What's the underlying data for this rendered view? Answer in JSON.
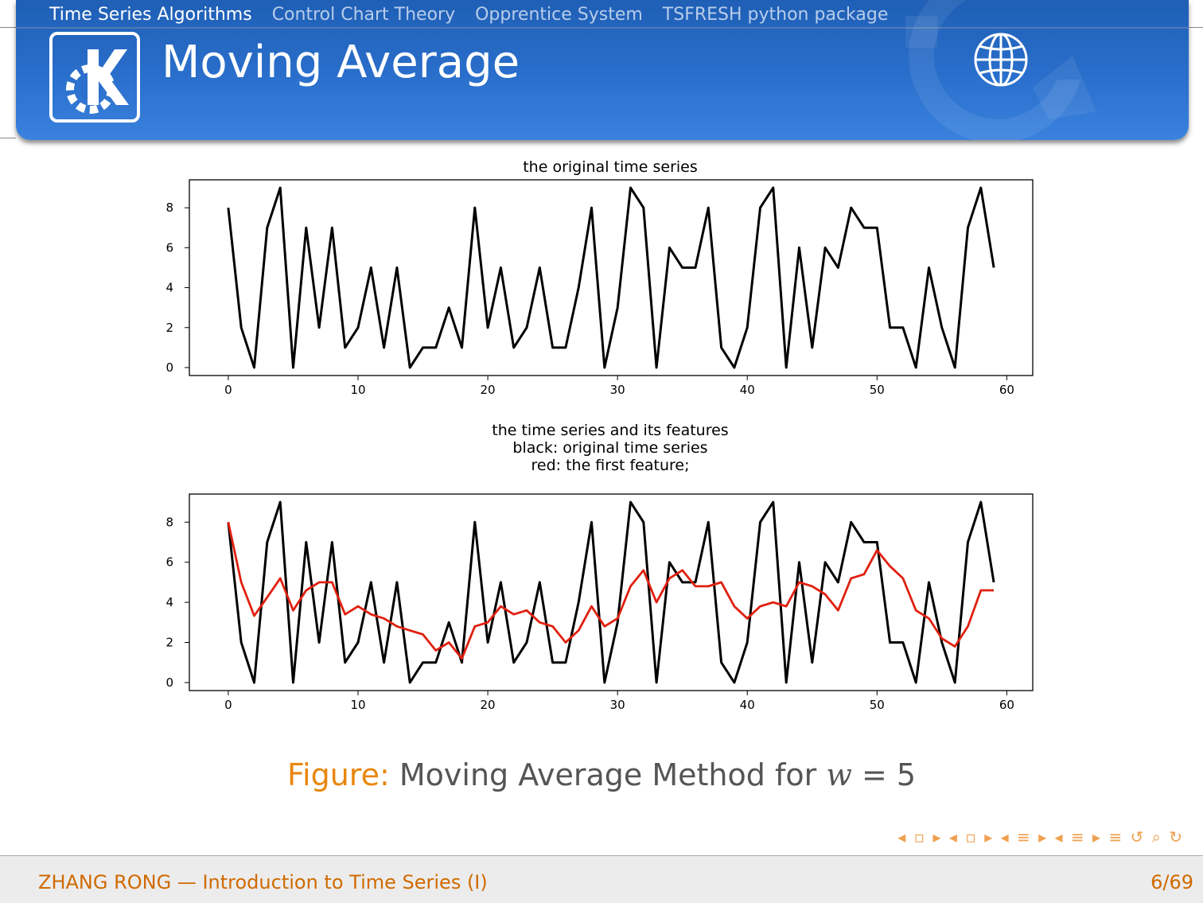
{
  "header": {
    "nav": [
      "Time Series Algorithms",
      "Control Chart Theory",
      "Opprentice System",
      "TSFRESH python package"
    ],
    "title": "Moving Average",
    "logo_icon": "kde-logo-icon",
    "globe_icon": "globe-icon"
  },
  "chart_data": [
    {
      "type": "line",
      "title": "the original time series",
      "xlim": [
        -3,
        62
      ],
      "ylim": [
        -0.4,
        9.4
      ],
      "xticks": [
        0,
        10,
        20,
        30,
        40,
        50,
        60
      ],
      "yticks": [
        0,
        2,
        4,
        6,
        8
      ],
      "series": [
        {
          "color": "#000000",
          "values": [
            8,
            2,
            0,
            7,
            9,
            0,
            7,
            2,
            7,
            1,
            2,
            5,
            1,
            5,
            0,
            1,
            1,
            3,
            1,
            8,
            2,
            5,
            1,
            2,
            5,
            1,
            1,
            4,
            8,
            0,
            3,
            9,
            8,
            0,
            6,
            5,
            5,
            8,
            1,
            0,
            2,
            8,
            9,
            0,
            6,
            1,
            6,
            5,
            8,
            7,
            7,
            2,
            2,
            0,
            5,
            2,
            0,
            7,
            9,
            5
          ]
        }
      ]
    },
    {
      "type": "line",
      "title": "the time series and its features\nblack: original time series\nred: the first feature;",
      "title_lines": [
        "the time series and its features",
        "black: original time series",
        "red: the first feature;"
      ],
      "xlim": [
        -3,
        62
      ],
      "ylim": [
        -0.4,
        9.4
      ],
      "xticks": [
        0,
        10,
        20,
        30,
        40,
        50,
        60
      ],
      "yticks": [
        0,
        2,
        4,
        6,
        8
      ],
      "series": [
        {
          "color": "#000000",
          "values": [
            8,
            2,
            0,
            7,
            9,
            0,
            7,
            2,
            7,
            1,
            2,
            5,
            1,
            5,
            0,
            1,
            1,
            3,
            1,
            8,
            2,
            5,
            1,
            2,
            5,
            1,
            1,
            4,
            8,
            0,
            3,
            9,
            8,
            0,
            6,
            5,
            5,
            8,
            1,
            0,
            2,
            8,
            9,
            0,
            6,
            1,
            6,
            5,
            8,
            7,
            7,
            2,
            2,
            0,
            5,
            2,
            0,
            7,
            9,
            5
          ]
        },
        {
          "color": "#e02010",
          "values": [
            8,
            5,
            3.33,
            4.25,
            5.2,
            3.6,
            4.6,
            5,
            5,
            3.4,
            3.8,
            3.4,
            3.2,
            2.8,
            2.6,
            2.4,
            1.6,
            2,
            1.2,
            2.8,
            3,
            3.8,
            3.4,
            3.6,
            3,
            2.8,
            2,
            2.6,
            3.8,
            2.8,
            3.2,
            4.8,
            5.6,
            4,
            5.2,
            5.6,
            4.8,
            4.8,
            5,
            3.8,
            3.2,
            3.8,
            4,
            3.8,
            5,
            4.8,
            4.4,
            3.6,
            5.2,
            5.4,
            6.6,
            5.8,
            5.2,
            3.6,
            3.2,
            2.2,
            1.8,
            2.8,
            4.6,
            4.6
          ]
        }
      ]
    }
  ],
  "caption": {
    "label": "Figure:",
    "text_before": "Moving Average Method for",
    "var": "w",
    "text_after": "= 5"
  },
  "nav_symbols": "◂ ▫ ▸ ◂ ▫ ▸ ◂ ≡ ▸ ◂ ≡ ▸   ≡   ↺ ⌕ ↻",
  "footer": {
    "left": "ZHANG RONG — Introduction to Time Series (I)",
    "right": "6/69"
  }
}
